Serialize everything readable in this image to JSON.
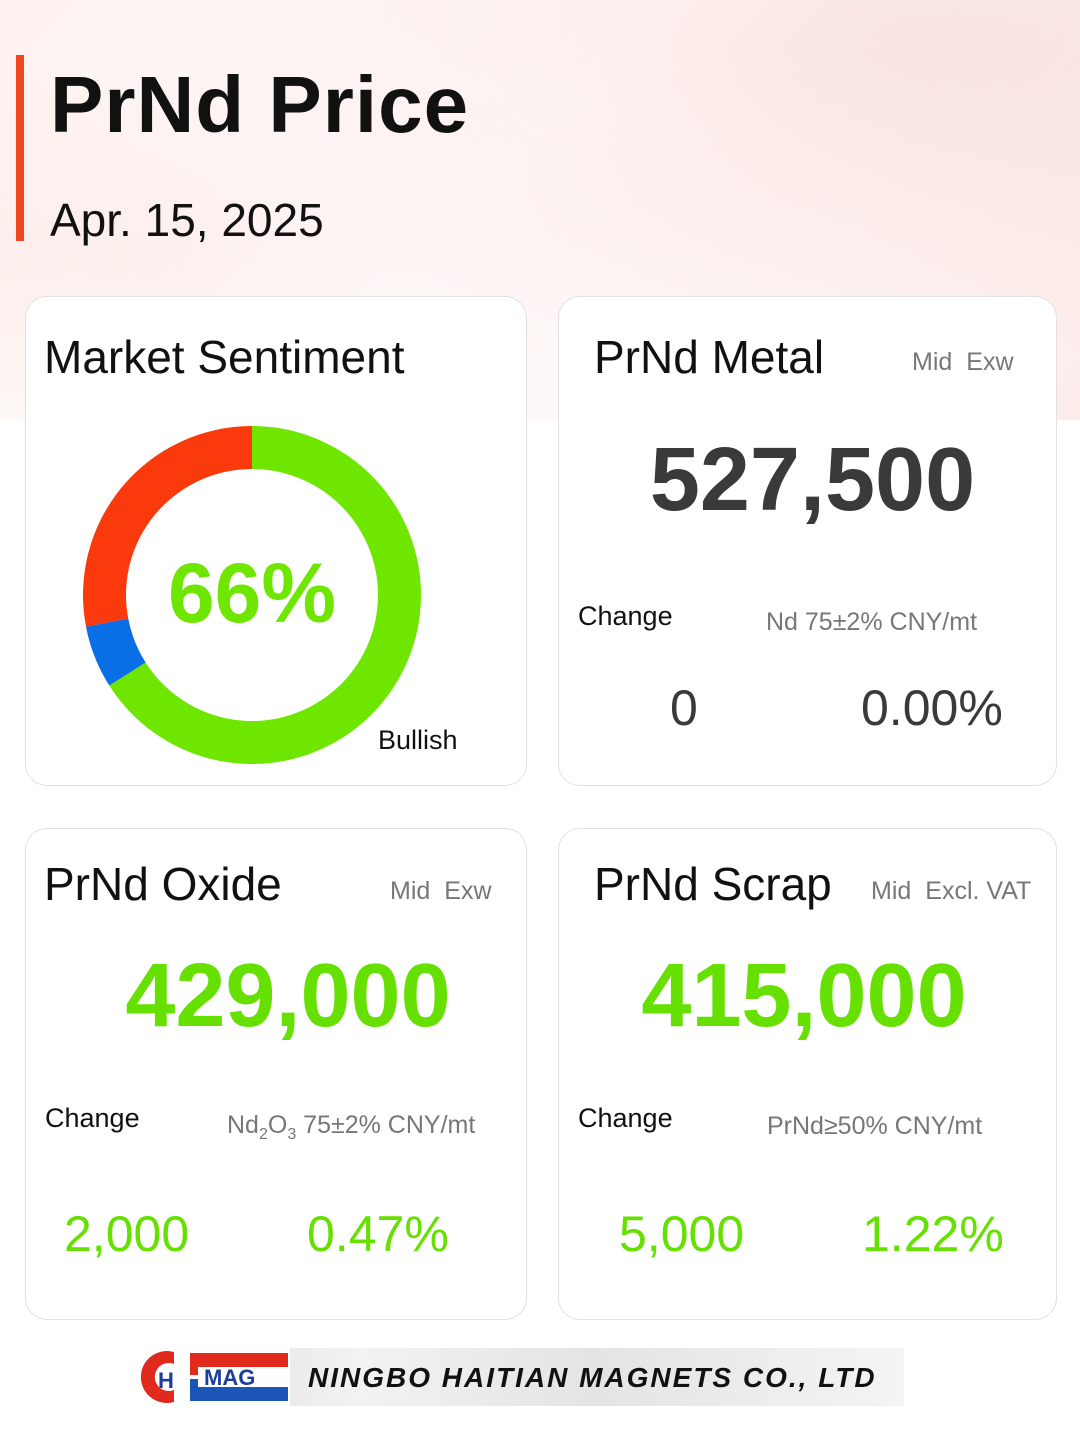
{
  "header": {
    "title": "PrNd Price",
    "date": "Apr. 15, 2025"
  },
  "sentiment": {
    "title": "Market Sentiment",
    "percent_label": "66%",
    "label": "Bullish",
    "segments": [
      {
        "name": "bullish",
        "fraction": 0.66,
        "color": "#6ee600"
      },
      {
        "name": "neutral",
        "fraction": 0.06,
        "color": "#0a6ee6"
      },
      {
        "name": "bearish",
        "fraction": 0.28,
        "color": "#fa3a0c"
      }
    ]
  },
  "cards": {
    "metal": {
      "title": "PrNd Metal",
      "mid": "Mid",
      "basis": "Exw",
      "price": "527,500",
      "change_label": "Change",
      "spec": "Nd 75±2% CNY/mt",
      "change_value": "0",
      "change_percent": "0.00%",
      "color": "#3a3a3a"
    },
    "oxide": {
      "title": "PrNd Oxide",
      "mid": "Mid",
      "basis": "Exw",
      "price": "429,000",
      "change_label": "Change",
      "spec_main": "Nd",
      "spec_sub1": "2",
      "spec_mid": "O",
      "spec_sub2": "3",
      "spec_rest": " 75±2% CNY/mt",
      "change_value": "2,000",
      "change_percent": "0.47%",
      "color": "#66e000"
    },
    "scrap": {
      "title": "PrNd Scrap",
      "mid": "Mid",
      "basis": "Excl. VAT",
      "price": "415,000",
      "change_label": "Change",
      "spec": "PrNd≥50% CNY/mt",
      "change_value": "5,000",
      "change_percent": "1.22%",
      "color": "#66e000"
    }
  },
  "footer": {
    "logo_letters": [
      "H",
      "MAG"
    ],
    "company": "NINGBO HAITIAN MAGNETS CO., LTD"
  }
}
